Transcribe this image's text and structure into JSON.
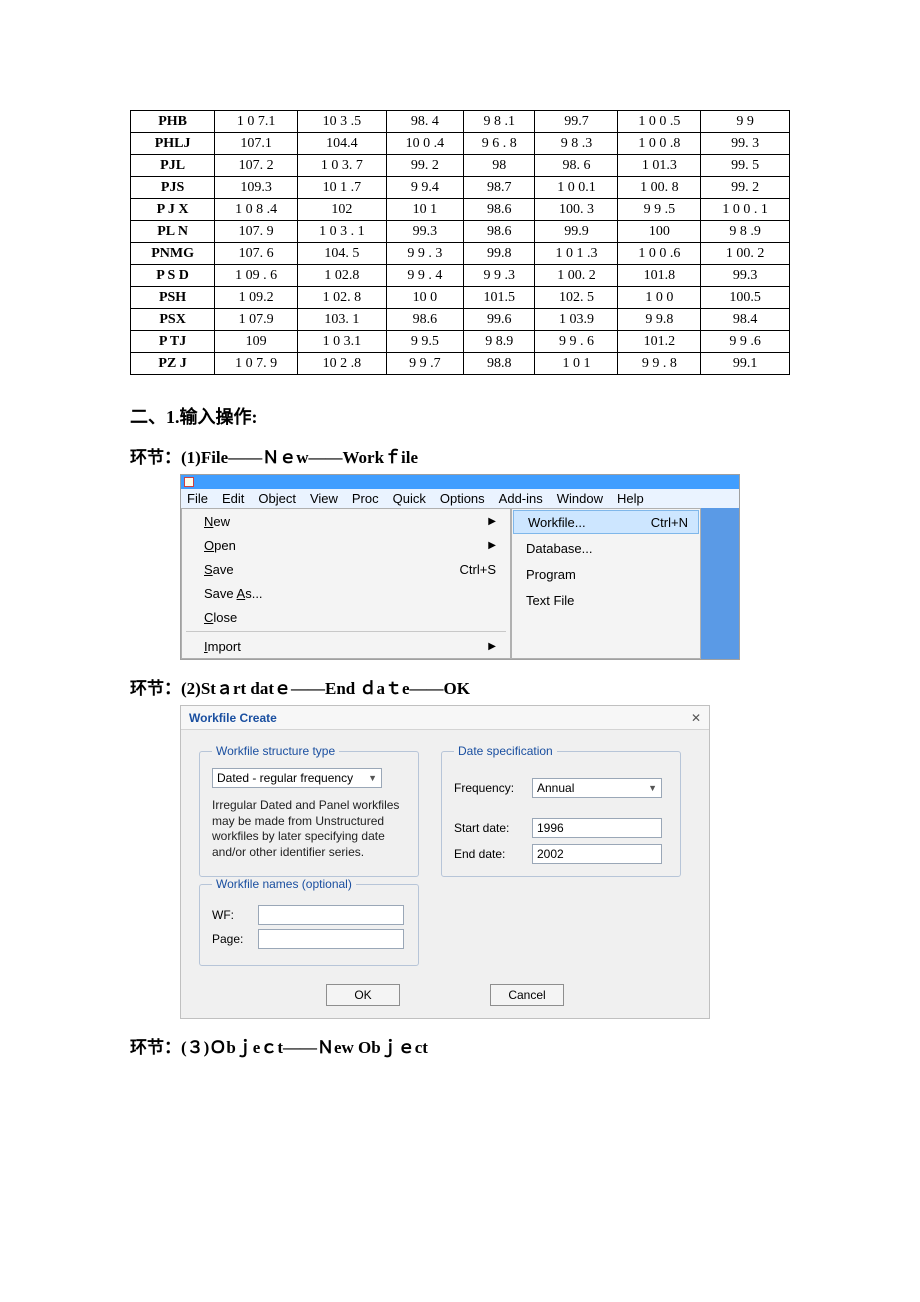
{
  "table": {
    "rows": [
      [
        "PHB",
        "1 0 7.1",
        "10 3 .5",
        "98.  4",
        "9  8 .1",
        "99.7",
        "1 0  0 .5",
        "9 9"
      ],
      [
        "PHLJ",
        "107.1",
        "104.4",
        "10 0 .4",
        "9  6 . 8",
        "9 8 .3",
        "1  0 0 .8",
        "99. 3"
      ],
      [
        "PJL",
        "107.  2",
        "1  0 3.  7",
        "99.  2",
        "98",
        "98.  6",
        "1 01.3",
        "99.  5"
      ],
      [
        "PJS",
        "109.3",
        "10 1 .7",
        "9 9.4",
        "98.7",
        "1 0 0.1",
        "1 00.  8",
        "99.  2"
      ],
      [
        "P J  X",
        "1 0  8 .4",
        "102",
        "10 1",
        "98.6",
        "100.  3",
        "9 9 .5",
        "1 0 0 .  1"
      ],
      [
        "PL N",
        "107. 9",
        "1 0 3 . 1",
        "99.3",
        "98.6",
        "99.9",
        "100",
        "9 8 .9"
      ],
      [
        "PNMG",
        "107.  6",
        "104.  5",
        "9 9 .  3",
        "99.8",
        "1 0  1 .3",
        "1 0 0 .6",
        "1 00.  2"
      ],
      [
        "P S D",
        "1 09 . 6",
        "1 02.8",
        "9 9 .  4",
        "9 9 .3",
        "1 00. 2",
        "101.8",
        "99.3"
      ],
      [
        "PSH",
        "1 09.2",
        "1 02.  8",
        "10 0",
        "101.5",
        "102.  5",
        "1 0  0",
        "100.5"
      ],
      [
        "PSX",
        "1 07.9",
        "103.  1",
        "98.6",
        "99.6",
        "1 03.9",
        "9 9.8",
        "98.4"
      ],
      [
        "P TJ",
        "109",
        "1 0 3.1",
        "9 9.5",
        "9 8.9",
        "9 9 .  6",
        "101.2",
        "9 9 .6"
      ],
      [
        "PZ J",
        "1 0 7.  9",
        "10 2 .8",
        "9 9 .7",
        "98.8",
        "1 0 1",
        "9 9 . 8",
        "99.1"
      ]
    ]
  },
  "headings": {
    "section": "二、1.输入操作:",
    "step1": "环节：(1)File——Ｎｅw——Workｆile",
    "step2": "环节：(2)Stａrt   datｅ——End ｄaｔe——OK",
    "step3": "环节：(３)Ｏbｊeｃt——Ｎew  Obｊｅct"
  },
  "shot1": {
    "menubar": [
      "File",
      "Edit",
      "Object",
      "View",
      "Proc",
      "Quick",
      "Options",
      "Add-ins",
      "Window",
      "Help"
    ],
    "menu": [
      {
        "u": "N",
        "rest": "ew",
        "right": "▶"
      },
      {
        "u": "O",
        "rest": "pen",
        "right": "▶"
      },
      {
        "u": "S",
        "rest": "ave",
        "right": "Ctrl+S"
      },
      {
        "label": "Save ",
        "u": "A",
        "rest": "s..."
      },
      {
        "u": "C",
        "rest": "lose"
      },
      {
        "sep": true
      },
      {
        "u": "I",
        "rest": "mport",
        "right": "▶"
      }
    ],
    "submenu": [
      {
        "u": "W",
        "rest": "orkfile...",
        "right": "Ctrl+N",
        "hl": true
      },
      {
        "label": "Database...",
        "u": "D",
        "rest": "atabase..."
      },
      {
        "label": "Program",
        "u": "P",
        "rest": "rogram"
      },
      {
        "label": "Text File",
        "u": "T",
        "rest": "ext File"
      }
    ]
  },
  "shot2": {
    "title": "Workfile Create",
    "structure_legend": "Workfile structure type",
    "structure_select": "Dated - regular frequency",
    "note": "Irregular Dated and Panel workfiles may be made from Unstructured workfiles by later specifying date and/or other identifier series.",
    "date_legend": "Date specification",
    "freq_label": "Frequency:",
    "freq_value": "Annual",
    "start_label": "Start date:",
    "start_value": "1996",
    "end_label": "End date:",
    "end_value": "2002",
    "names_legend": "Workfile names (optional)",
    "wf_label": "WF:",
    "page_label": "Page:",
    "ok": "OK",
    "cancel": "Cancel"
  }
}
